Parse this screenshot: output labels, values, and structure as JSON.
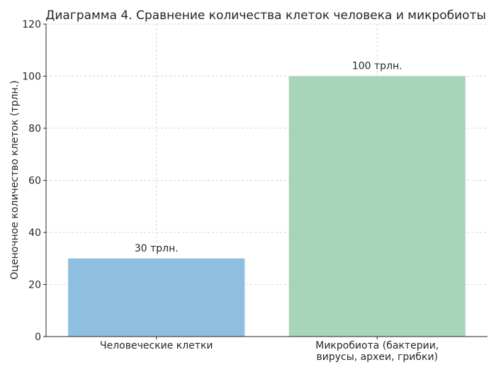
{
  "chart_data": {
    "type": "bar",
    "title": "Диаграмма 4. Сравнение количества клеток человека и микробиоты",
    "xlabel": "",
    "ylabel": "Оценочное количество клеток (трлн.)",
    "ylim": [
      0,
      120
    ],
    "yticks": [
      0,
      20,
      40,
      60,
      80,
      100,
      120
    ],
    "grid": true,
    "categories": [
      [
        "Человеческие клетки"
      ],
      [
        "Микробиота (бактерии,",
        "вирусы, археи, грибки)"
      ]
    ],
    "values": [
      30,
      100
    ],
    "data_labels": [
      "30 трлн.",
      "100 трлн."
    ],
    "colors": [
      "#8fbfe0",
      "#a8d5ba"
    ]
  }
}
